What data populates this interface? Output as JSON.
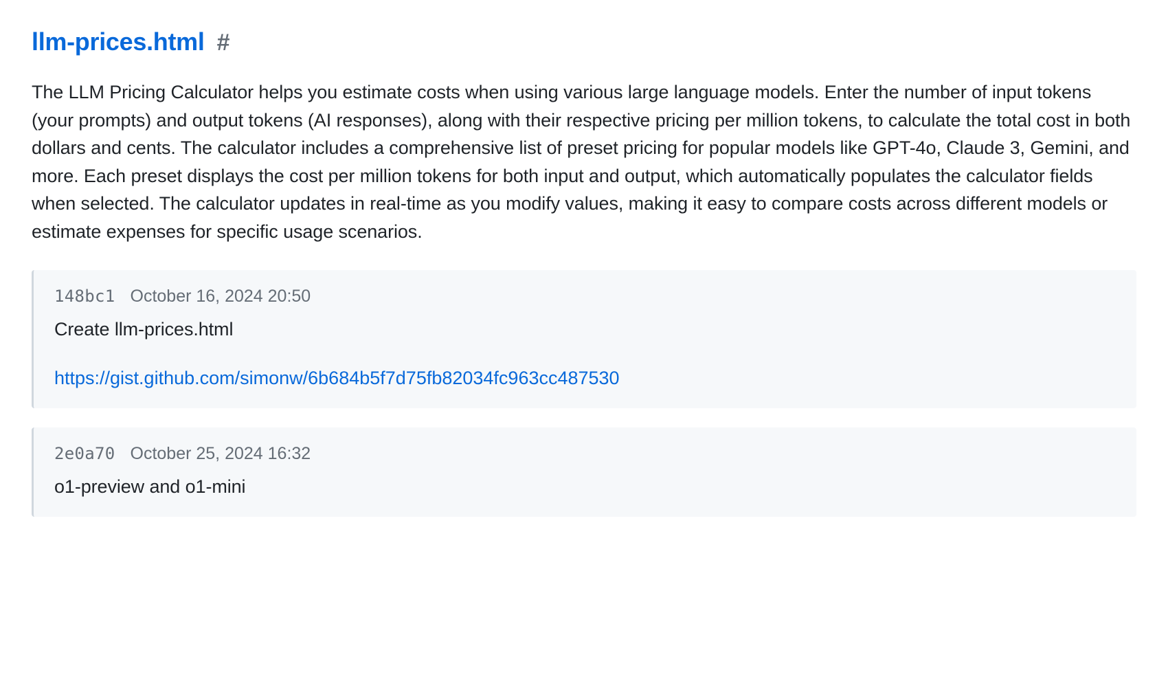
{
  "colors": {
    "link": "#0969da",
    "text": "#1f2328",
    "muted": "#656d76",
    "card_bg": "#f6f8fa",
    "card_border": "#d0d7de",
    "page_bg": "#ffffff"
  },
  "heading": {
    "title": "llm-prices.html",
    "anchor": "#"
  },
  "description": "The LLM Pricing Calculator helps you estimate costs when using various large language models. Enter the number of input tokens (your prompts) and output tokens (AI responses), along with their respective pricing per million tokens, to calculate the total cost in both dollars and cents. The calculator includes a comprehensive list of preset pricing for popular models like GPT-4o, Claude 3, Gemini, and more. Each preset displays the cost per million tokens for both input and output, which automatically populates the calculator fields when selected. The calculator updates in real-time as you modify values, making it easy to compare costs across different models or estimate expenses for specific usage scenarios.",
  "commits": [
    {
      "hash": "148bc1",
      "date": "October 16, 2024 20:50",
      "message": "Create llm-prices.html",
      "link": "https://gist.github.com/simonw/6b684b5f7d75fb82034fc963cc487530"
    },
    {
      "hash": "2e0a70",
      "date": "October 25, 2024 16:32",
      "message": "o1-preview and o1-mini",
      "link": null
    }
  ]
}
